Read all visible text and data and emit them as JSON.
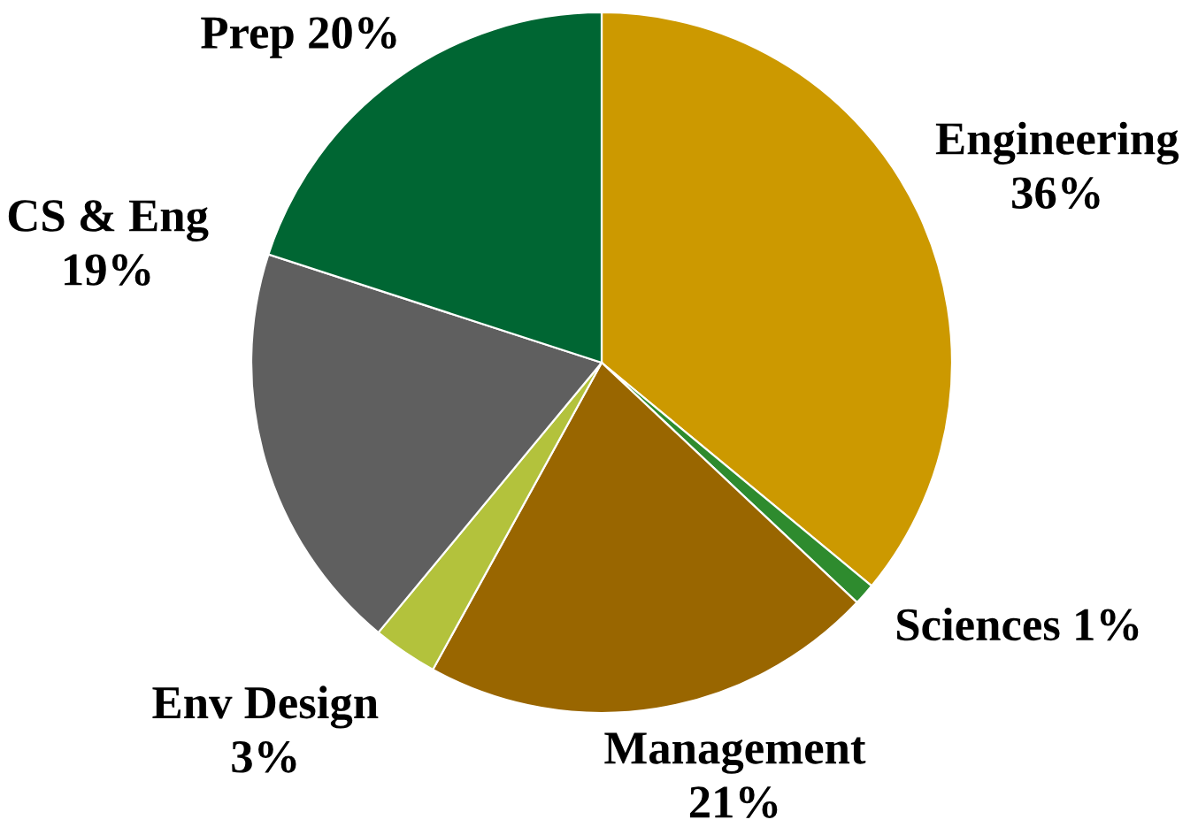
{
  "chart_data": {
    "type": "pie",
    "categories": [
      "Engineering",
      "Sciences",
      "Management",
      "Env Design",
      "CS & Eng",
      "Prep"
    ],
    "values": [
      36,
      1,
      21,
      3,
      19,
      20
    ],
    "value_labels": [
      "36%",
      "1%",
      "21%",
      "3%",
      "19%",
      "20%"
    ],
    "colors": [
      "#cc9900",
      "#2e8b2e",
      "#996600",
      "#b3c23c",
      "#5f5f5f",
      "#006633"
    ],
    "legend": false
  }
}
